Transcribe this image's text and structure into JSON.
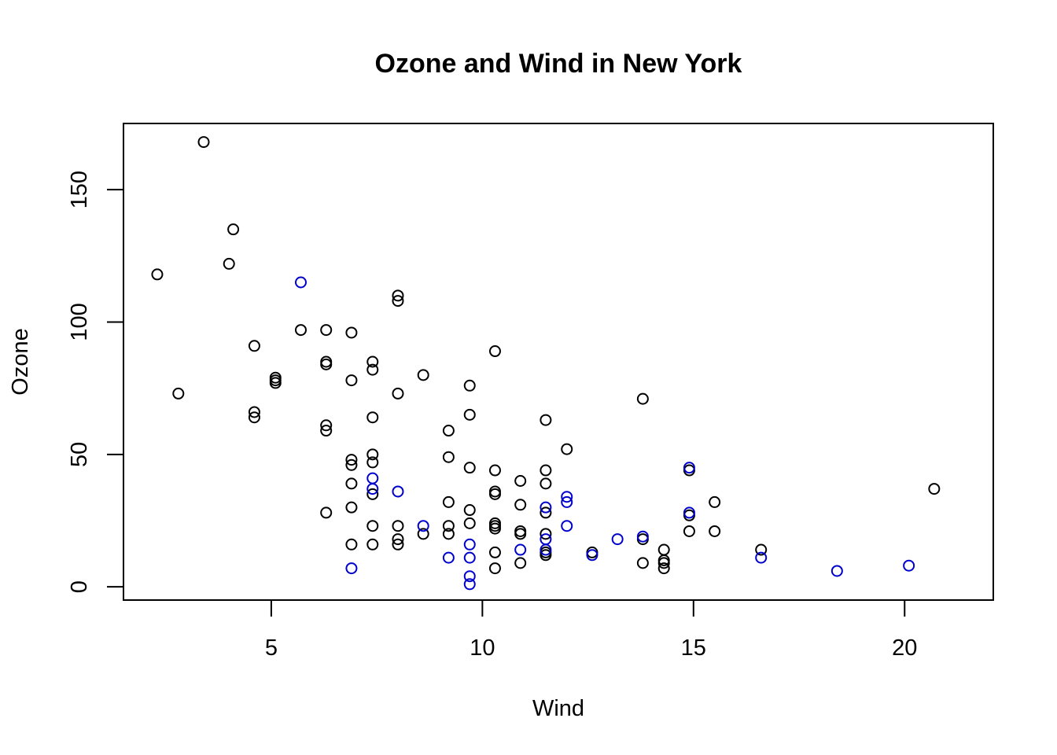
{
  "chart_data": {
    "type": "scatter",
    "title": "Ozone and Wind in New York",
    "xlabel": "Wind",
    "ylabel": "Ozone",
    "xlim": [
      1.5,
      22.1
    ],
    "ylim": [
      -5,
      175
    ],
    "xticks": [
      5,
      10,
      15,
      20
    ],
    "yticks": [
      0,
      50,
      100,
      150
    ],
    "grid": false,
    "colors": {
      "black": "#000000",
      "blue": "#0000CD"
    },
    "series": [
      {
        "color": "#000000",
        "points": [
          [
            3.4,
            168
          ],
          [
            2.3,
            118
          ],
          [
            2.8,
            73
          ],
          [
            4.1,
            135
          ],
          [
            4.0,
            122
          ],
          [
            4.6,
            91
          ],
          [
            4.6,
            66
          ],
          [
            4.6,
            64
          ],
          [
            5.1,
            79
          ],
          [
            5.1,
            78
          ],
          [
            5.1,
            77
          ],
          [
            5.7,
            97
          ],
          [
            6.3,
            97
          ],
          [
            6.3,
            85
          ],
          [
            6.3,
            84
          ],
          [
            6.3,
            61
          ],
          [
            6.3,
            59
          ],
          [
            6.3,
            28
          ],
          [
            6.9,
            96
          ],
          [
            6.9,
            78
          ],
          [
            6.9,
            48
          ],
          [
            6.9,
            46
          ],
          [
            6.9,
            39
          ],
          [
            6.9,
            30
          ],
          [
            6.9,
            16
          ],
          [
            7.4,
            85
          ],
          [
            7.4,
            82
          ],
          [
            7.4,
            64
          ],
          [
            7.4,
            50
          ],
          [
            7.4,
            47
          ],
          [
            7.4,
            35
          ],
          [
            7.4,
            23
          ],
          [
            7.4,
            16
          ],
          [
            8.0,
            110
          ],
          [
            8.0,
            108
          ],
          [
            8.0,
            73
          ],
          [
            8.0,
            23
          ],
          [
            8.0,
            18
          ],
          [
            8.0,
            16
          ],
          [
            8.6,
            80
          ],
          [
            8.6,
            20
          ],
          [
            9.2,
            59
          ],
          [
            9.2,
            49
          ],
          [
            9.2,
            32
          ],
          [
            9.2,
            23
          ],
          [
            9.2,
            20
          ],
          [
            9.7,
            76
          ],
          [
            9.7,
            65
          ],
          [
            9.7,
            45
          ],
          [
            9.7,
            29
          ],
          [
            9.7,
            24
          ],
          [
            10.3,
            89
          ],
          [
            10.3,
            44
          ],
          [
            10.3,
            36
          ],
          [
            10.3,
            35
          ],
          [
            10.3,
            24
          ],
          [
            10.3,
            23
          ],
          [
            10.3,
            22
          ],
          [
            10.3,
            13
          ],
          [
            10.3,
            7
          ],
          [
            10.9,
            40
          ],
          [
            10.9,
            31
          ],
          [
            10.9,
            21
          ],
          [
            10.9,
            20
          ],
          [
            10.9,
            9
          ],
          [
            11.5,
            63
          ],
          [
            11.5,
            44
          ],
          [
            11.5,
            39
          ],
          [
            11.5,
            28
          ],
          [
            11.5,
            20
          ],
          [
            11.5,
            13
          ],
          [
            11.5,
            12
          ],
          [
            12.0,
            52
          ],
          [
            12.6,
            13
          ],
          [
            13.8,
            71
          ],
          [
            13.8,
            18
          ],
          [
            13.8,
            9
          ],
          [
            14.3,
            14
          ],
          [
            14.3,
            10
          ],
          [
            14.3,
            9
          ],
          [
            14.3,
            7
          ],
          [
            14.9,
            44
          ],
          [
            14.9,
            27
          ],
          [
            14.9,
            21
          ],
          [
            15.5,
            32
          ],
          [
            15.5,
            21
          ],
          [
            16.6,
            14
          ],
          [
            20.7,
            37
          ]
        ]
      },
      {
        "color": "#0000CD",
        "points": [
          [
            5.7,
            115
          ],
          [
            6.9,
            7
          ],
          [
            7.4,
            41
          ],
          [
            7.4,
            37
          ],
          [
            8.0,
            36
          ],
          [
            8.6,
            23
          ],
          [
            9.2,
            11
          ],
          [
            9.7,
            16
          ],
          [
            9.7,
            11
          ],
          [
            9.7,
            4
          ],
          [
            9.7,
            1
          ],
          [
            10.9,
            14
          ],
          [
            11.5,
            30
          ],
          [
            11.5,
            18
          ],
          [
            11.5,
            14
          ],
          [
            12.0,
            34
          ],
          [
            12.0,
            32
          ],
          [
            12.0,
            23
          ],
          [
            12.6,
            12
          ],
          [
            13.2,
            18
          ],
          [
            13.8,
            19
          ],
          [
            14.9,
            45
          ],
          [
            14.9,
            28
          ],
          [
            16.6,
            11
          ],
          [
            18.4,
            6
          ],
          [
            20.1,
            8
          ]
        ]
      }
    ]
  }
}
